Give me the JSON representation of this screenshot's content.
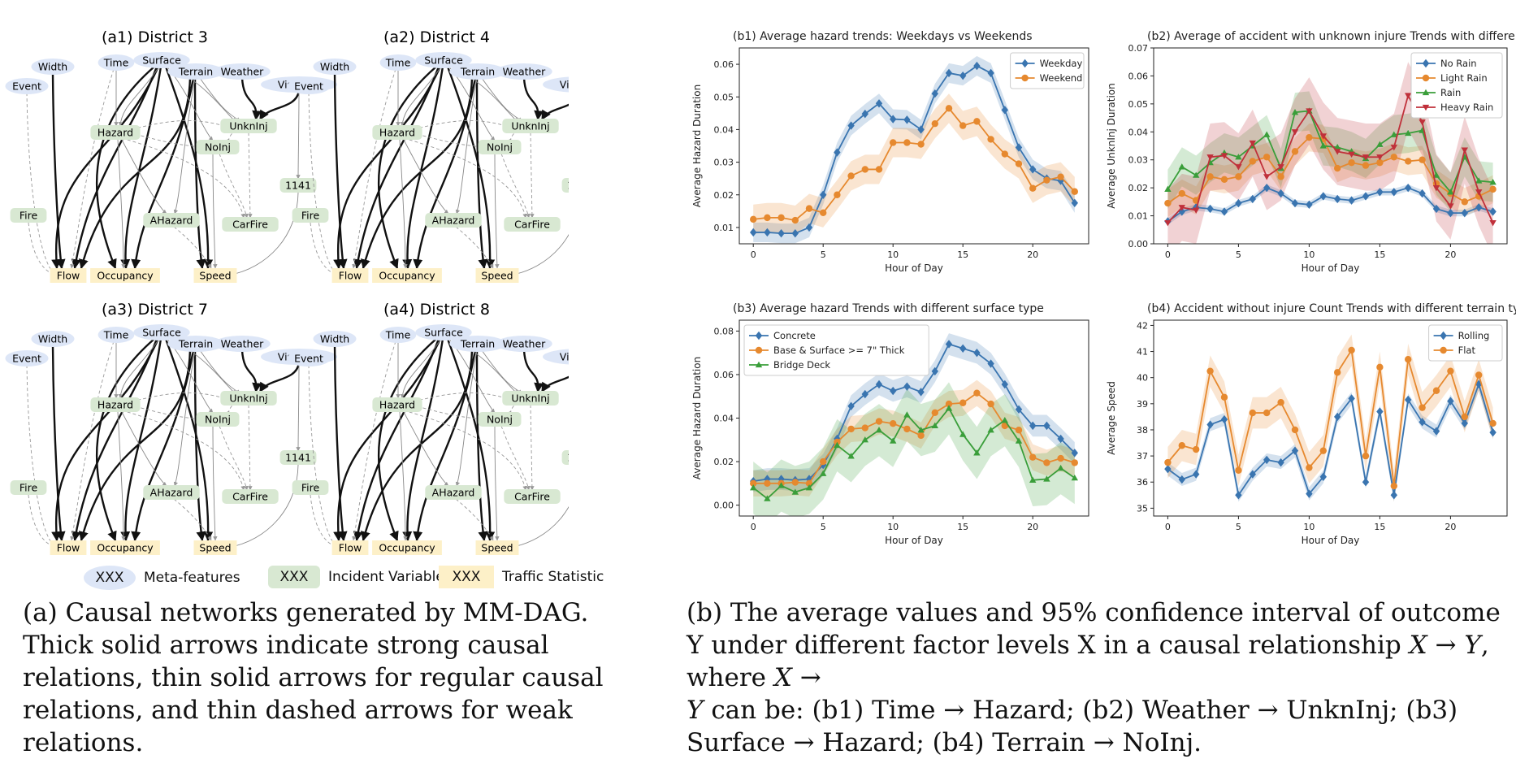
{
  "dag_panels": [
    {
      "label": "(a1)",
      "title": "District 3"
    },
    {
      "label": "(a2)",
      "title": "District 4"
    },
    {
      "label": "(a3)",
      "title": "District 7"
    },
    {
      "label": "(a4)",
      "title": "District 8"
    }
  ],
  "dag_nodes": {
    "meta": [
      "Width",
      "Event",
      "Time",
      "Surface",
      "Terrain",
      "Weather",
      "Visibility"
    ],
    "incident": [
      "Hazard",
      "UnknInj",
      "NoInj",
      "1141",
      "Fire",
      "AHazard",
      "CarFire"
    ],
    "traffic": [
      "Flow",
      "Occupancy",
      "Speed"
    ]
  },
  "legend": {
    "meta": {
      "box": "XXX",
      "label": "Meta-features",
      "color": "#dde6f7"
    },
    "incident": {
      "box": "XXX",
      "label": "Incident Variable",
      "color": "#d8e8d2"
    },
    "traffic": {
      "box": "XXX",
      "label": "Traffic Statistic",
      "color": "#fdf0c8"
    }
  },
  "caption_a": "(a) Causal networks generated by MM-DAG. Thick solid arrows indicate strong causal relations, thin solid arrows for regular causal relations, and thin dashed arrows for weak relations.",
  "caption_b": {
    "part1": "(b) The average values and 95% confidence interval of outcome Y under different factor levels X in a causal relationship ",
    "rel1": "X → Y",
    "part2": ", where ",
    "rel2": "X →",
    "rel3": "Y",
    "part3": " can be: (b1) Time → Hazard; (b2) Weather → UnknInj; (b3) Surface → Hazard; (b4) Terrain → NoInj."
  },
  "chart_data": [
    {
      "type": "line",
      "label": "(b1)",
      "title": "Average hazard trends: Weekdays vs Weekends",
      "xlabel": "Hour of Day",
      "ylabel": "Average Hazard Duration",
      "xlim": [
        -1,
        24
      ],
      "ylim": [
        0.005,
        0.065
      ],
      "xticks": [
        0,
        5,
        10,
        15,
        20
      ],
      "yticks": [
        0.01,
        0.02,
        0.03,
        0.04,
        0.05,
        0.06
      ],
      "ytick_labels": [
        "0.01",
        "0.02",
        "0.03",
        "0.04",
        "0.05",
        "0.06"
      ],
      "legend_position": "top-right",
      "x": [
        0,
        1,
        2,
        3,
        4,
        5,
        6,
        7,
        8,
        9,
        10,
        11,
        12,
        13,
        14,
        15,
        16,
        17,
        18,
        19,
        20,
        21,
        22,
        23
      ],
      "series": [
        {
          "name": "Weekday",
          "color": "#3a75b0",
          "marker": "diamond",
          "ci": 0.003,
          "values": [
            0.0085,
            0.0085,
            0.0082,
            0.0082,
            0.01,
            0.02,
            0.033,
            0.0412,
            0.0448,
            0.048,
            0.0432,
            0.043,
            0.04,
            0.051,
            0.0573,
            0.0565,
            0.0595,
            0.0573,
            0.046,
            0.0345,
            0.0278,
            0.025,
            0.0243,
            0.0175
          ]
        },
        {
          "name": "Weekend",
          "color": "#e6892f",
          "marker": "circle",
          "ci": 0.0045,
          "values": [
            0.0125,
            0.013,
            0.013,
            0.0122,
            0.0158,
            0.0145,
            0.02,
            0.0258,
            0.0278,
            0.0278,
            0.036,
            0.036,
            0.0355,
            0.0418,
            0.0465,
            0.0412,
            0.0425,
            0.037,
            0.0325,
            0.0295,
            0.022,
            0.0245,
            0.0255,
            0.021
          ]
        }
      ]
    },
    {
      "type": "line",
      "label": "(b2)",
      "title": "Average of accident with unknown injure Trends with different weather",
      "xlabel": "Hour of Day",
      "ylabel": "Average UnknInj Duration",
      "xlim": [
        -1,
        24
      ],
      "ylim": [
        0.0,
        0.07
      ],
      "xticks": [
        0,
        5,
        10,
        15,
        20
      ],
      "yticks": [
        0.0,
        0.01,
        0.02,
        0.03,
        0.04,
        0.05,
        0.06,
        0.07
      ],
      "ytick_labels": [
        "0.00",
        "0.01",
        "0.02",
        "0.03",
        "0.04",
        "0.05",
        "0.06",
        "0.07"
      ],
      "legend_position": "top-right",
      "x": [
        0,
        1,
        2,
        3,
        4,
        5,
        6,
        7,
        8,
        9,
        10,
        11,
        12,
        13,
        14,
        15,
        16,
        17,
        18,
        19,
        20,
        21,
        22,
        23
      ],
      "series": [
        {
          "name": "No Rain",
          "color": "#3a75b0",
          "marker": "diamond",
          "ci": 0.0012,
          "values": [
            0.008,
            0.0115,
            0.013,
            0.0125,
            0.0115,
            0.0145,
            0.016,
            0.02,
            0.018,
            0.0145,
            0.014,
            0.017,
            0.016,
            0.0155,
            0.017,
            0.0185,
            0.0185,
            0.02,
            0.018,
            0.0125,
            0.011,
            0.011,
            0.013,
            0.0115
          ]
        },
        {
          "name": "Light Rain",
          "color": "#e6892f",
          "marker": "circle",
          "ci": 0.005,
          "values": [
            0.0145,
            0.018,
            0.0155,
            0.024,
            0.023,
            0.024,
            0.0295,
            0.031,
            0.024,
            0.033,
            0.038,
            0.0375,
            0.027,
            0.029,
            0.028,
            0.029,
            0.031,
            0.0295,
            0.03,
            0.0215,
            0.018,
            0.015,
            0.017,
            0.0195
          ]
        },
        {
          "name": "Rain",
          "color": "#3a9e3a",
          "marker": "triangle",
          "ci": 0.007,
          "values": [
            0.0195,
            0.0275,
            0.0245,
            0.029,
            0.0325,
            0.031,
            0.035,
            0.039,
            0.027,
            0.047,
            0.0475,
            0.035,
            0.0345,
            0.033,
            0.0305,
            0.0355,
            0.039,
            0.0395,
            0.0405,
            0.0245,
            0.0185,
            0.031,
            0.0225,
            0.022
          ]
        },
        {
          "name": "Heavy Rain",
          "color": "#c0303a",
          "marker": "triangle-down",
          "ci": 0.012,
          "values": [
            0.0075,
            0.013,
            0.012,
            0.031,
            0.0315,
            0.0275,
            0.036,
            0.024,
            0.0275,
            0.04,
            0.0475,
            0.0385,
            0.033,
            0.032,
            0.031,
            0.031,
            0.0345,
            0.053,
            0.0435,
            0.02,
            0.0135,
            0.0335,
            0.0185,
            0.0075
          ]
        }
      ]
    },
    {
      "type": "line",
      "label": "(b3)",
      "title": "Average hazard Trends with different surface type",
      "xlabel": "Hour of Day",
      "ylabel": "Average Hazard Duration",
      "xlim": [
        -1,
        24
      ],
      "ylim": [
        -0.005,
        0.085
      ],
      "xticks": [
        0,
        5,
        10,
        15,
        20
      ],
      "yticks": [
        0.0,
        0.02,
        0.04,
        0.06,
        0.08
      ],
      "ytick_labels": [
        "0.00",
        "0.02",
        "0.04",
        "0.06",
        "0.08"
      ],
      "legend_position": "top-left",
      "x": [
        0,
        1,
        2,
        3,
        4,
        5,
        6,
        7,
        8,
        9,
        10,
        11,
        12,
        13,
        14,
        15,
        16,
        17,
        18,
        19,
        20,
        21,
        22,
        23
      ],
      "series": [
        {
          "name": "Concrete",
          "color": "#3a75b0",
          "marker": "diamond",
          "ci": 0.005,
          "values": [
            0.011,
            0.012,
            0.012,
            0.0115,
            0.012,
            0.0185,
            0.0305,
            0.0455,
            0.051,
            0.0555,
            0.0525,
            0.0545,
            0.052,
            0.0615,
            0.074,
            0.072,
            0.07,
            0.065,
            0.0555,
            0.044,
            0.0365,
            0.0365,
            0.0305,
            0.024
          ]
        },
        {
          "name": "Base & Surface >= 7\" Thick",
          "color": "#e6892f",
          "marker": "circle",
          "ci": 0.006,
          "values": [
            0.01,
            0.01,
            0.01,
            0.0105,
            0.01,
            0.02,
            0.029,
            0.035,
            0.0355,
            0.0385,
            0.0375,
            0.035,
            0.032,
            0.0425,
            0.0465,
            0.047,
            0.0515,
            0.0465,
            0.0365,
            0.0345,
            0.022,
            0.0195,
            0.0215,
            0.0195
          ]
        },
        {
          "name": "Bridge Deck",
          "color": "#3a9e3a",
          "marker": "triangle",
          "ci": 0.012,
          "values": [
            0.008,
            0.003,
            0.009,
            0.006,
            0.008,
            0.0145,
            0.0275,
            0.0225,
            0.03,
            0.0345,
            0.0295,
            0.0415,
            0.0345,
            0.0365,
            0.0445,
            0.0325,
            0.024,
            0.0345,
            0.039,
            0.0295,
            0.0115,
            0.012,
            0.017,
            0.0125
          ]
        }
      ]
    },
    {
      "type": "line",
      "label": "(b4)",
      "title": "Accident without injure Count Trends with different terrain type",
      "xlabel": "Hour of Day",
      "ylabel": "Average Speed",
      "xlim": [
        -1,
        24
      ],
      "ylim": [
        34.7,
        42.2
      ],
      "xticks": [
        0,
        5,
        10,
        15,
        20
      ],
      "yticks": [
        35,
        36,
        37,
        38,
        39,
        40,
        41,
        42
      ],
      "ytick_labels": [
        "35",
        "36",
        "37",
        "38",
        "39",
        "40",
        "41",
        "42"
      ],
      "legend_position": "top-right",
      "x": [
        0,
        1,
        2,
        3,
        4,
        5,
        6,
        7,
        8,
        9,
        10,
        11,
        12,
        13,
        14,
        15,
        16,
        17,
        18,
        19,
        20,
        21,
        22,
        23
      ],
      "series": [
        {
          "name": "Rolling",
          "color": "#3a75b0",
          "marker": "diamond",
          "ci": 0.25,
          "values": [
            36.5,
            36.1,
            36.3,
            38.2,
            38.4,
            35.5,
            36.3,
            36.85,
            36.75,
            37.2,
            35.55,
            36.2,
            38.5,
            39.2,
            36.0,
            38.7,
            35.5,
            39.15,
            38.3,
            37.95,
            39.1,
            38.25,
            39.75,
            37.9
          ]
        },
        {
          "name": "Flat",
          "color": "#e6892f",
          "marker": "circle",
          "ci": 0.6,
          "values": [
            36.75,
            37.4,
            37.25,
            40.25,
            39.25,
            36.45,
            38.65,
            38.65,
            39.05,
            38.0,
            36.55,
            37.2,
            40.2,
            41.05,
            37.0,
            40.4,
            35.85,
            40.7,
            38.85,
            39.5,
            40.25,
            38.5,
            40.1,
            38.25
          ]
        }
      ]
    }
  ]
}
